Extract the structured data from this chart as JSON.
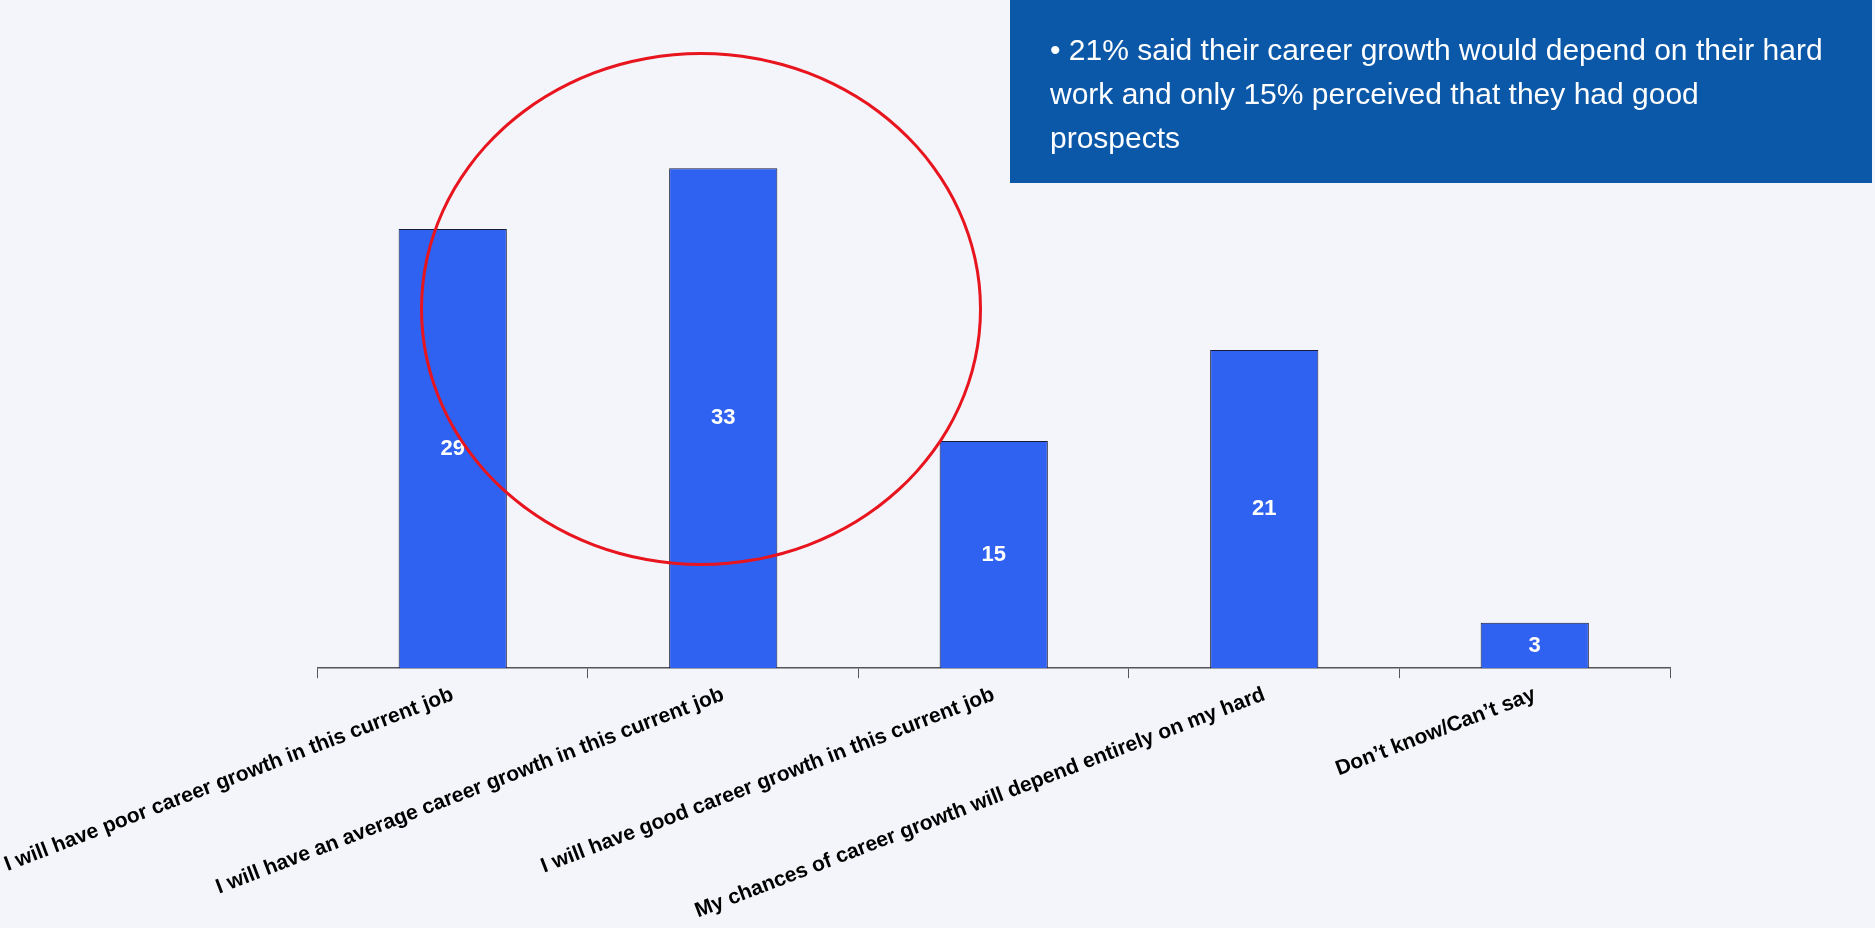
{
  "chart_data": {
    "type": "bar",
    "categories": [
      "I will have poor career growth in this current job",
      "I will have an average career growth in this current job",
      "I will have good career growth in this current job",
      "My chances of career growth will depend entirely on my hard",
      "Don’t know/Can’t say"
    ],
    "values": [
      29,
      33,
      15,
      21,
      3
    ],
    "color": "#2f62f0",
    "data_labels": true,
    "annotations": [
      "•   21% said their career growth would depend on their hard work and only 15% perceived that they had good prospects"
    ]
  }
}
